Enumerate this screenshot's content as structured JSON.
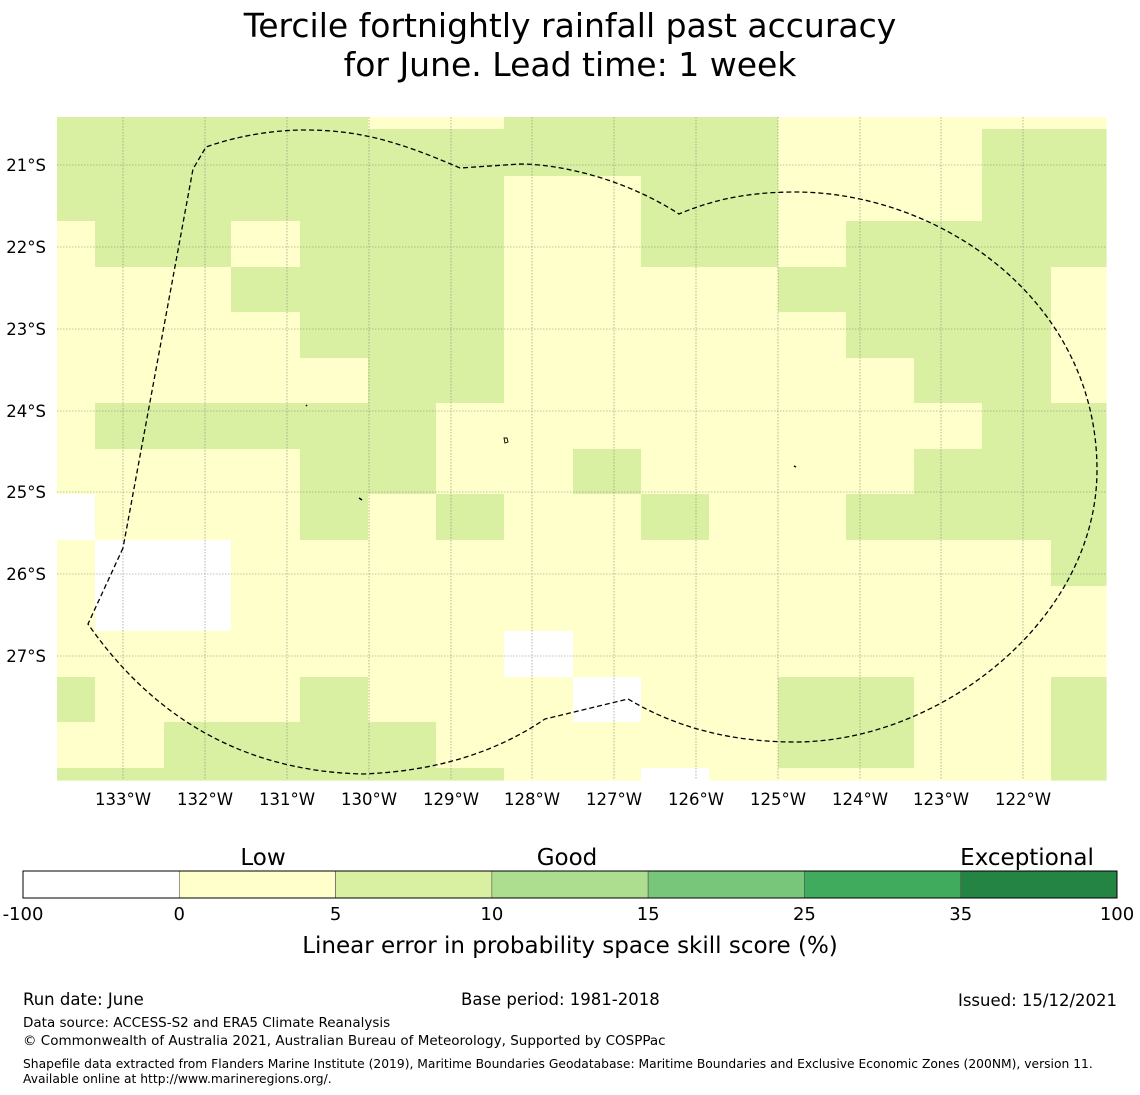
{
  "title": {
    "line1": "Tercile fortnightly rainfall past accuracy",
    "line2": "for June. Lead time: 1 week"
  },
  "map": {
    "lat_labels": [
      "21°S",
      "22°S",
      "23°S",
      "24°S",
      "25°S",
      "26°S",
      "27°S"
    ],
    "lon_labels": [
      "133°W",
      "132°W",
      "131°W",
      "130°W",
      "129°W",
      "128°W",
      "127°W",
      "126°W",
      "125°W",
      "124°W",
      "123°W",
      "122°W"
    ],
    "colors": {
      "white": "#ffffff",
      "yellow": "#ffffcc",
      "lightgreen": "#d9f0a3"
    }
  },
  "colorbar": {
    "category_labels": [
      "Low",
      "Good",
      "Exceptional"
    ],
    "ticks": [
      "-100",
      "0",
      "5",
      "10",
      "15",
      "25",
      "35",
      "100"
    ],
    "colors": [
      "#ffffff",
      "#ffffcc",
      "#d9f0a3",
      "#addd8e",
      "#78c679",
      "#41ab5d",
      "#238443"
    ],
    "label": "Linear error in probability space skill score (%)"
  },
  "footer": {
    "run_date": "Run date: June",
    "base_period": "Base period: 1981-2018",
    "issued": "Issued: 15/12/2021",
    "data_source": "Data source: ACCESS-S2 and ERA5 Climate Reanalysis",
    "copyright": "© Commonwealth of Australia 2021, Australian Bureau of Meteorology, Supported by COSPPac",
    "shapefile": "Shapefile data extracted from Flanders Marine Institute (2019), Maritime Boundaries Geodatabase: Maritime Boundaries and Exclusive Economic Zones (200NM), version 11. Available online at http://www.marineregions.org/."
  }
}
